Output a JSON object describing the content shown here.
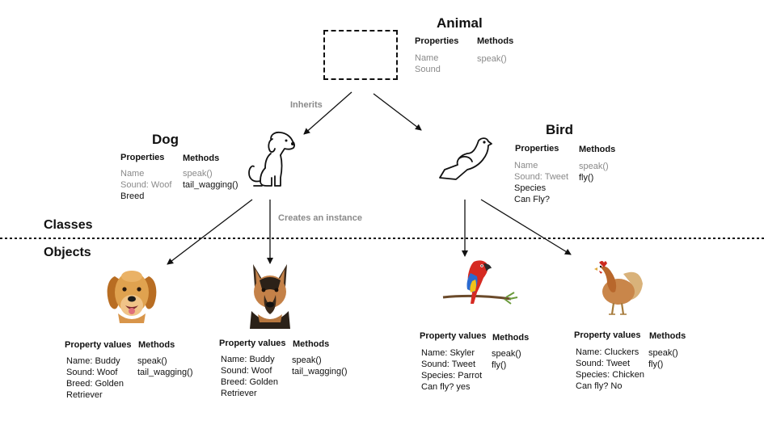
{
  "animal": {
    "title": "Animal",
    "properties_header": "Properties",
    "methods_header": "Methods",
    "properties": [
      "Name",
      "Sound"
    ],
    "methods": [
      "speak()"
    ]
  },
  "dog": {
    "title": "Dog",
    "properties_header": "Properties",
    "methods_header": "Methods",
    "properties_inherited": [
      "Name",
      "Sound: Woof"
    ],
    "properties_own": [
      "Breed"
    ],
    "methods_inherited": [
      "speak()"
    ],
    "methods_own": [
      "tail_wagging()"
    ]
  },
  "bird": {
    "title": "Bird",
    "properties_header": "Properties",
    "methods_header": "Methods",
    "properties_inherited": [
      "Name",
      "Sound: Tweet"
    ],
    "properties_own": [
      "Species",
      "Can Fly?"
    ],
    "methods_inherited": [
      "speak()"
    ],
    "methods_own": [
      "fly()"
    ]
  },
  "labels": {
    "inherits": "Inherits",
    "creates_instance": "Creates an instance",
    "classes": "Classes",
    "objects": "Objects"
  },
  "objects": [
    {
      "name": "golden-retriever",
      "values_header": "Property values",
      "methods_header": "Methods",
      "values": [
        "Name: Buddy",
        "Sound:  Woof",
        "Breed: Golden",
        "Retriever"
      ],
      "methods": [
        "speak()",
        "tail_wagging()"
      ]
    },
    {
      "name": "german-shepherd",
      "values_header": "Property values",
      "methods_header": "Methods",
      "values": [
        "Name: Buddy",
        "Sound: Woof",
        "Breed: Golden",
        "Retriever"
      ],
      "methods": [
        "speak()",
        "tail_wagging()"
      ]
    },
    {
      "name": "parrot",
      "values_header": "Property values",
      "methods_header": "Methods",
      "values": [
        "Name: Skyler",
        "Sound:  Tweet",
        "Species: Parrot",
        "Can fly? yes"
      ],
      "methods": [
        "speak()",
        "fly()"
      ]
    },
    {
      "name": "rooster",
      "values_header": "Property values",
      "methods_header": "Methods",
      "values": [
        "Name: Cluckers",
        "Sound:  Tweet",
        "Species: Chicken",
        "Can fly? No"
      ],
      "methods": [
        "speak()",
        "fly()"
      ]
    }
  ]
}
